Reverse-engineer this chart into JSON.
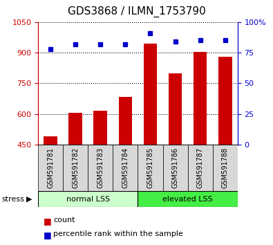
{
  "title": "GDS3868 / ILMN_1753790",
  "categories": [
    "GSM591781",
    "GSM591782",
    "GSM591783",
    "GSM591784",
    "GSM591785",
    "GSM591786",
    "GSM591787",
    "GSM591788"
  ],
  "bar_values": [
    490,
    605,
    615,
    685,
    945,
    800,
    905,
    880
  ],
  "percentile_values": [
    78,
    82,
    82,
    82,
    91,
    84,
    85,
    85
  ],
  "ylim_left": [
    450,
    1050
  ],
  "ylim_right": [
    0,
    100
  ],
  "yticks_left": [
    450,
    600,
    750,
    900,
    1050
  ],
  "yticks_right": [
    0,
    25,
    50,
    75,
    100
  ],
  "bar_color": "#cc0000",
  "dot_color": "#0000cc",
  "bar_width": 0.55,
  "normal_color": "#ccffcc",
  "elevated_color": "#44ee44",
  "cell_bg_color": "#d8d8d8",
  "left_axis_color": "#cc0000",
  "right_axis_color": "#0000cc",
  "title_fontsize": 11,
  "tick_fontsize": 8,
  "label_fontsize": 8
}
